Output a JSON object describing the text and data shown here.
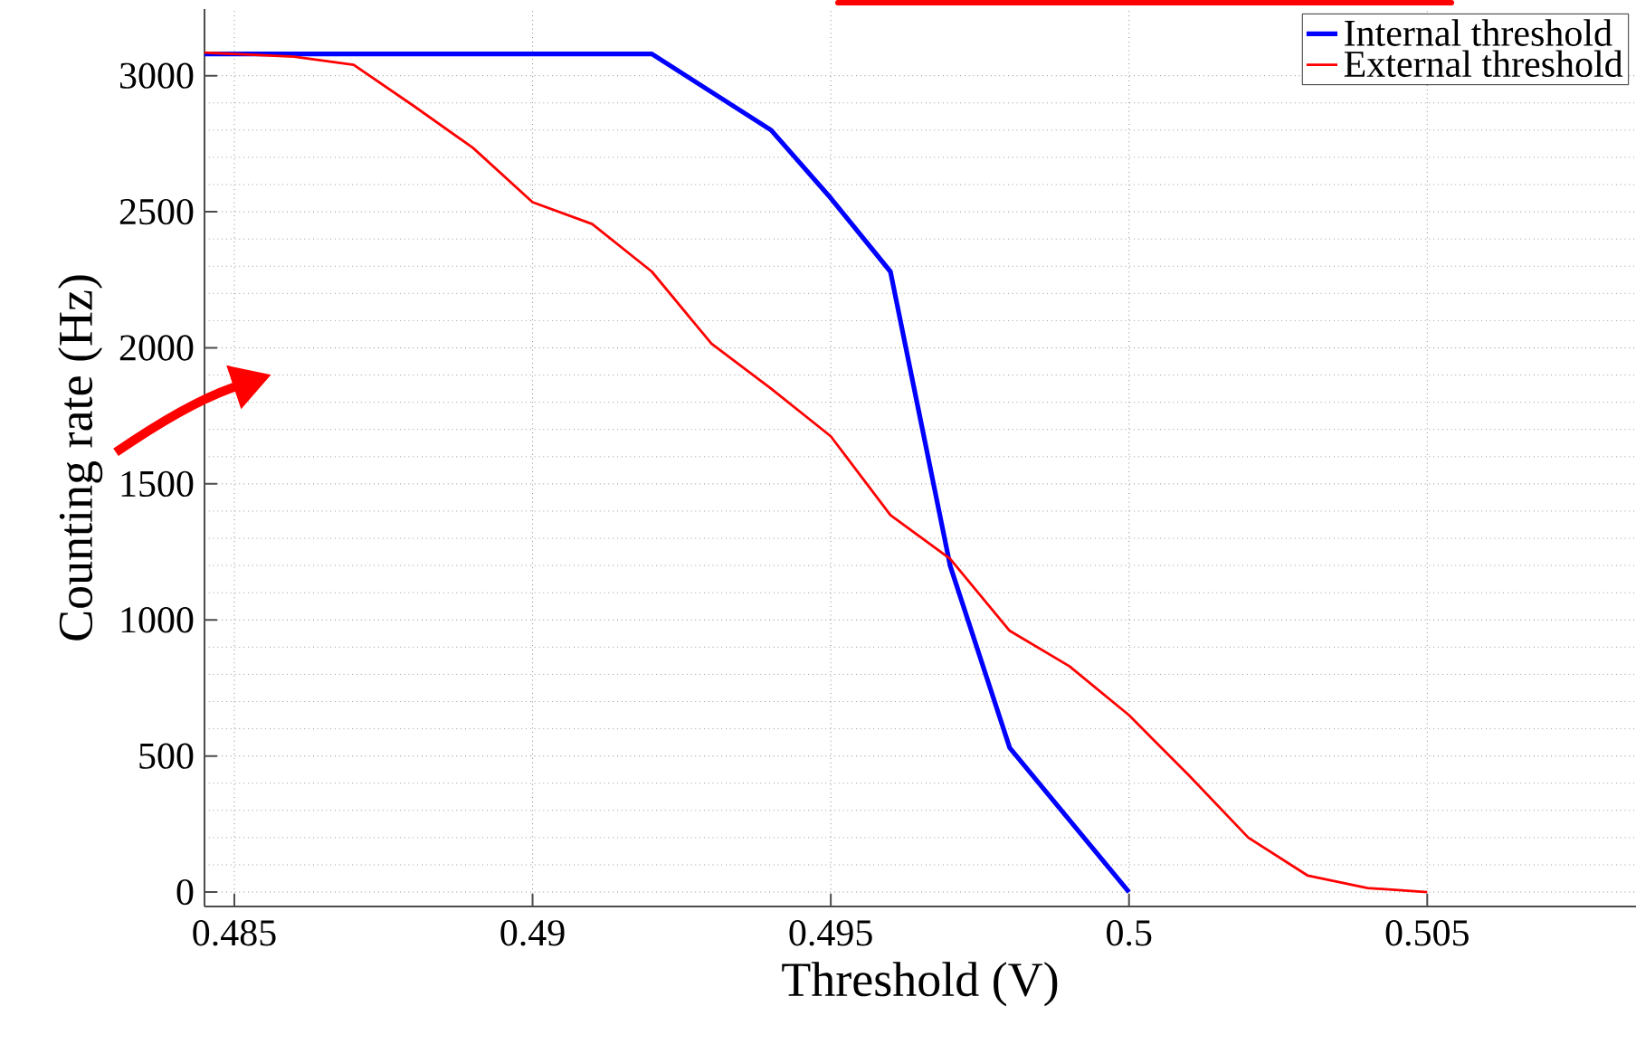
{
  "chart_data": {
    "type": "line",
    "xlabel": "Threshold (V)",
    "ylabel": "Counting rate (Hz)",
    "series": [
      {
        "name": "Internal threshold",
        "color": "#0000ff",
        "x": [
          0.4845,
          0.485,
          0.486,
          0.487,
          0.488,
          0.489,
          0.49,
          0.491,
          0.492,
          0.493,
          0.494,
          0.495,
          0.496,
          0.497,
          0.498,
          0.499,
          0.5
        ],
        "values": [
          3080,
          3080,
          3080,
          3080,
          3080,
          3080,
          3080,
          3080,
          3080,
          2940,
          2800,
          2550,
          2280,
          1200,
          530,
          265,
          0
        ]
      },
      {
        "name": "External threshold",
        "color": "#ff0000",
        "x": [
          0.4845,
          0.485,
          0.486,
          0.487,
          0.488,
          0.489,
          0.49,
          0.491,
          0.492,
          0.493,
          0.494,
          0.495,
          0.496,
          0.497,
          0.498,
          0.499,
          0.5,
          0.501,
          0.502,
          0.503,
          0.504,
          0.505
        ],
        "values": [
          3085,
          3080,
          3070,
          3040,
          2890,
          2735,
          2535,
          2455,
          2280,
          2015,
          1850,
          1675,
          1385,
          1225,
          960,
          830,
          650,
          430,
          200,
          60,
          15,
          0
        ]
      }
    ],
    "xlim": [
      0.4845,
      0.5085
    ],
    "ylim": [
      -53,
      3245
    ],
    "xticks": [
      0.485,
      0.49,
      0.495,
      0.5,
      0.505
    ],
    "yticks": [
      0,
      500,
      1000,
      1500,
      2000,
      2500,
      3000
    ],
    "grid": true,
    "legend": "top right",
    "marker": "none",
    "line_style": "solid"
  }
}
